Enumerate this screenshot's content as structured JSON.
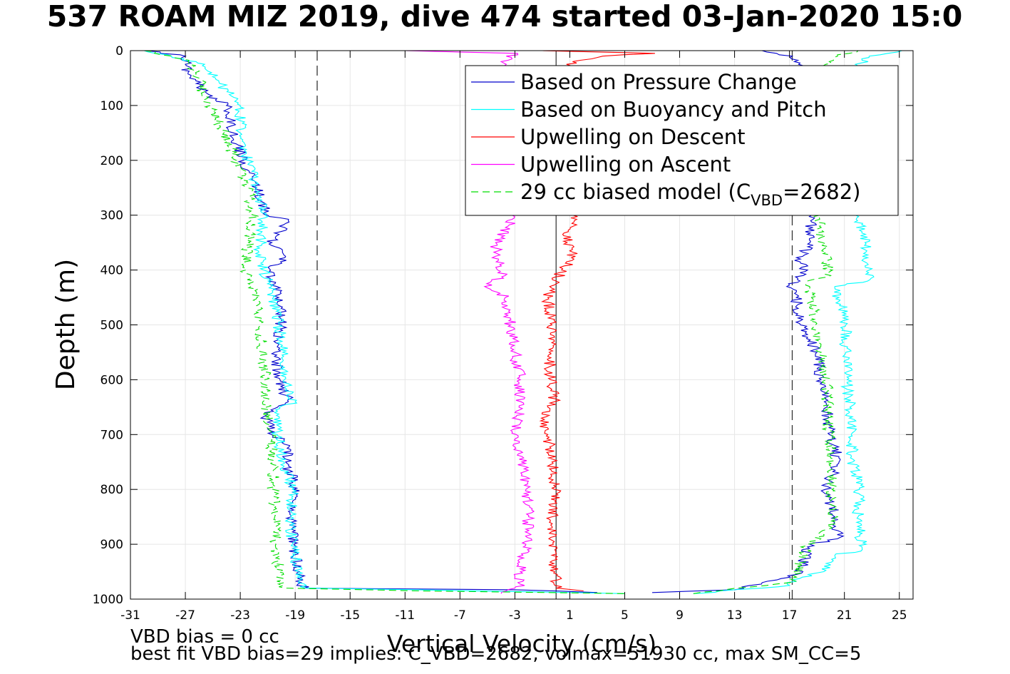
{
  "chart_data": {
    "type": "line",
    "title": "537 ROAM MIZ 2019, dive 474 started 03-Jan-2020 15:0",
    "xlabel": "Vertical Velocity (cm/s)",
    "ylabel": "Depth (m)",
    "xlim": [
      -31,
      26
    ],
    "ylim": [
      0,
      1000
    ],
    "y_reversed": true,
    "xticks": [
      -31,
      -27,
      -23,
      -19,
      -15,
      -11,
      -7,
      -3,
      1,
      5,
      9,
      13,
      17,
      21,
      25
    ],
    "yticks": [
      0,
      100,
      200,
      300,
      400,
      500,
      600,
      700,
      800,
      900,
      1000
    ],
    "grid": true,
    "legend_position": "top-right",
    "reference_lines": {
      "dashed_x": [
        -17.4,
        17.2
      ],
      "solid_x": [
        0.0
      ]
    },
    "series": [
      {
        "name": "Based on Pressure Change",
        "color": "#0000cc",
        "style": "solid",
        "descent": [
          [
            0,
            -30
          ],
          [
            10,
            -27
          ],
          [
            40,
            -26.8
          ],
          [
            60,
            -26.2
          ],
          [
            80,
            -25.3
          ],
          [
            100,
            -24
          ],
          [
            150,
            -23.5
          ],
          [
            200,
            -22.8
          ],
          [
            250,
            -21.8
          ],
          [
            300,
            -21
          ],
          [
            310,
            -19.5
          ],
          [
            350,
            -20.7
          ],
          [
            375,
            -19.7
          ],
          [
            400,
            -20.8
          ],
          [
            450,
            -20.2
          ],
          [
            500,
            -20
          ],
          [
            550,
            -20.5
          ],
          [
            600,
            -20.1
          ],
          [
            640,
            -19.5
          ],
          [
            660,
            -21.2
          ],
          [
            700,
            -20.7
          ],
          [
            720,
            -19.4
          ],
          [
            750,
            -19.7
          ],
          [
            780,
            -19.2
          ],
          [
            800,
            -19.1
          ],
          [
            850,
            -19.3
          ],
          [
            900,
            -19.1
          ],
          [
            950,
            -18.7
          ],
          [
            980,
            -18.4
          ],
          [
            983,
            -3
          ],
          [
            988,
            3
          ]
        ],
        "ascent": [
          [
            988,
            7
          ],
          [
            983,
            13
          ],
          [
            970,
            15
          ],
          [
            955,
            17.5
          ],
          [
            935,
            18
          ],
          [
            900,
            18.5
          ],
          [
            890,
            20.5
          ],
          [
            850,
            20.3
          ],
          [
            800,
            19.6
          ],
          [
            750,
            20.6
          ],
          [
            700,
            19.9
          ],
          [
            650,
            19.7
          ],
          [
            600,
            19.3
          ],
          [
            550,
            19
          ],
          [
            500,
            17.8
          ],
          [
            450,
            17.5
          ],
          [
            430,
            16.8
          ],
          [
            410,
            18
          ],
          [
            380,
            17.8
          ],
          [
            350,
            18.5
          ],
          [
            300,
            18.6
          ],
          [
            200,
            18.3
          ],
          [
            100,
            18.2
          ],
          [
            30,
            18
          ],
          [
            10,
            17.2
          ],
          [
            0,
            15
          ]
        ]
      },
      {
        "name": "Based on Buoyancy and Pitch",
        "color": "#00ffff",
        "style": "solid",
        "descent": [
          [
            0,
            -30
          ],
          [
            10,
            -28
          ],
          [
            25,
            -25.6
          ],
          [
            50,
            -24.8
          ],
          [
            80,
            -23.8
          ],
          [
            100,
            -23
          ],
          [
            150,
            -23
          ],
          [
            200,
            -22.4
          ],
          [
            250,
            -21.8
          ],
          [
            300,
            -21.2
          ],
          [
            360,
            -21.6
          ],
          [
            400,
            -21.3
          ],
          [
            450,
            -20.6
          ],
          [
            500,
            -20.2
          ],
          [
            550,
            -19.9
          ],
          [
            600,
            -19.8
          ],
          [
            640,
            -19
          ],
          [
            660,
            -20.5
          ],
          [
            700,
            -20.3
          ],
          [
            750,
            -19.8
          ],
          [
            800,
            -19.2
          ],
          [
            850,
            -19.3
          ],
          [
            900,
            -19.2
          ],
          [
            950,
            -18.8
          ],
          [
            980,
            -18.2
          ],
          [
            983,
            -10
          ],
          [
            990,
            5
          ]
        ],
        "ascent": [
          [
            990,
            10
          ],
          [
            975,
            17
          ],
          [
            965,
            17.2
          ],
          [
            950,
            19.5
          ],
          [
            920,
            20.3
          ],
          [
            910,
            22.3
          ],
          [
            850,
            22
          ],
          [
            800,
            22.1
          ],
          [
            750,
            21.6
          ],
          [
            700,
            21.5
          ],
          [
            650,
            21.4
          ],
          [
            600,
            21.2
          ],
          [
            550,
            21.1
          ],
          [
            500,
            21.1
          ],
          [
            450,
            20.6
          ],
          [
            430,
            20.3
          ],
          [
            420,
            22.7
          ],
          [
            400,
            22.8
          ],
          [
            350,
            22.5
          ],
          [
            300,
            21.8
          ],
          [
            100,
            21.2
          ],
          [
            30,
            21.8
          ],
          [
            10,
            22.8
          ],
          [
            0,
            25.2
          ]
        ]
      },
      {
        "name": "Upwelling on Descent",
        "color": "#ff0000",
        "style": "solid",
        "descent": [
          [
            0,
            -1
          ],
          [
            5,
            7.2
          ],
          [
            10,
            3.4
          ],
          [
            20,
            1.2
          ],
          [
            100,
            0.6
          ],
          [
            200,
            0.8
          ],
          [
            300,
            1.2
          ],
          [
            350,
            0.8
          ],
          [
            380,
            1.3
          ],
          [
            400,
            0.4
          ],
          [
            420,
            0
          ],
          [
            450,
            -0.6
          ],
          [
            500,
            -0.3
          ],
          [
            550,
            -0.5
          ],
          [
            600,
            -0.4
          ],
          [
            640,
            -0.1
          ],
          [
            660,
            -1
          ],
          [
            700,
            -0.6
          ],
          [
            750,
            -0.3
          ],
          [
            800,
            -0.1
          ],
          [
            850,
            -0.3
          ],
          [
            900,
            -0.2
          ],
          [
            950,
            -0.1
          ],
          [
            980,
            0
          ],
          [
            985,
            2
          ]
        ]
      },
      {
        "name": "Upwelling on Ascent",
        "color": "#ff00ff",
        "style": "solid",
        "ascent": [
          [
            990,
            -4
          ],
          [
            975,
            -2.3
          ],
          [
            960,
            -3
          ],
          [
            950,
            -2.6
          ],
          [
            900,
            -2.2
          ],
          [
            850,
            -2
          ],
          [
            800,
            -2.2
          ],
          [
            750,
            -2.5
          ],
          [
            700,
            -2.9
          ],
          [
            650,
            -2.7
          ],
          [
            600,
            -2.6
          ],
          [
            550,
            -3
          ],
          [
            500,
            -3.3
          ],
          [
            450,
            -3.7
          ],
          [
            430,
            -5.2
          ],
          [
            410,
            -3.7
          ],
          [
            380,
            -4.2
          ],
          [
            350,
            -4.4
          ],
          [
            320,
            -3.5
          ],
          [
            300,
            -3.2
          ],
          [
            100,
            -3
          ],
          [
            40,
            -2.8
          ],
          [
            20,
            -4
          ],
          [
            5,
            -2.8
          ],
          [
            0,
            -11
          ]
        ]
      },
      {
        "name": "29 cc biased model (C<sub>VBD</sub>=2682)",
        "color": "#00dd00",
        "style": "dashed",
        "descent": [
          [
            0,
            -30
          ],
          [
            10,
            -28
          ],
          [
            20,
            -26.8
          ],
          [
            50,
            -26
          ],
          [
            80,
            -25.8
          ],
          [
            100,
            -25.2
          ],
          [
            150,
            -24.2
          ],
          [
            200,
            -23.3
          ],
          [
            250,
            -22.5
          ],
          [
            300,
            -22
          ],
          [
            350,
            -22.4
          ],
          [
            400,
            -22.6
          ],
          [
            430,
            -22.2
          ],
          [
            450,
            -21.8
          ],
          [
            500,
            -21.6
          ],
          [
            550,
            -21.3
          ],
          [
            600,
            -21.2
          ],
          [
            650,
            -21.1
          ],
          [
            700,
            -20.8
          ],
          [
            750,
            -20.6
          ],
          [
            800,
            -20.6
          ],
          [
            850,
            -20.5
          ],
          [
            900,
            -20.4
          ],
          [
            950,
            -20.2
          ],
          [
            980,
            -19.7
          ],
          [
            985,
            -10
          ],
          [
            990,
            5
          ]
        ],
        "ascent": [
          [
            990,
            10
          ],
          [
            970,
            17
          ],
          [
            960,
            17.5
          ],
          [
            900,
            18.3
          ],
          [
            870,
            20.1
          ],
          [
            800,
            20.1
          ],
          [
            700,
            19.9
          ],
          [
            600,
            19.7
          ],
          [
            550,
            19.3
          ],
          [
            500,
            18.9
          ],
          [
            450,
            18.6
          ],
          [
            420,
            18.3
          ],
          [
            410,
            20
          ],
          [
            350,
            19.4
          ],
          [
            300,
            19.2
          ],
          [
            100,
            19
          ],
          [
            30,
            19.4
          ],
          [
            10,
            20.5
          ],
          [
            0,
            22
          ]
        ]
      }
    ]
  },
  "notes": {
    "vbd_bias": "VBD bias = 0 cc",
    "best_fit": "best fit VBD bias=29 implies: C_VBD=2682, volmax=51930 cc, max SM_CC=5"
  }
}
